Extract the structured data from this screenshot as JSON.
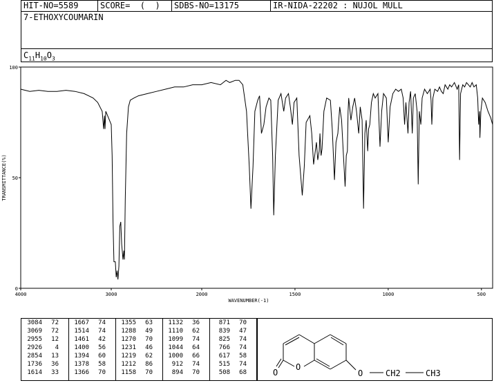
{
  "header": {
    "hit_no": "HIT-NO=5589",
    "score": "SCORE=  (  )",
    "sdbs_no": "SDBS-NO=13175",
    "ir_nida": "IR-NIDA-22202 : NUJOL MULL"
  },
  "compound": {
    "name": "7-ETHOXYCOUMARIN",
    "formula_parts": [
      "C",
      "11",
      "H",
      "10",
      "O",
      "3"
    ]
  },
  "chart_data": {
    "type": "line",
    "ylabel": "TRANSMITTANCE(%)",
    "xlabel": "WAVENUMBER(-1)",
    "x_ticks": [
      "4000",
      "3000",
      "2000",
      "1500",
      "1000",
      "500"
    ],
    "y_ticks": [
      "100",
      "50",
      "0"
    ],
    "ylim": [
      0,
      100
    ],
    "series": [
      {
        "points": [
          [
            4000,
            90
          ],
          [
            3900,
            89
          ],
          [
            3800,
            89.5
          ],
          [
            3700,
            89
          ],
          [
            3600,
            89
          ],
          [
            3500,
            89.5
          ],
          [
            3400,
            89
          ],
          [
            3300,
            88
          ],
          [
            3200,
            86
          ],
          [
            3150,
            84
          ],
          [
            3100,
            80
          ],
          [
            3084,
            72
          ],
          [
            3075,
            78
          ],
          [
            3069,
            72
          ],
          [
            3060,
            80
          ],
          [
            3040,
            78
          ],
          [
            3020,
            76
          ],
          [
            3000,
            74
          ],
          [
            2990,
            60
          ],
          [
            2980,
            30
          ],
          [
            2970,
            12
          ],
          [
            2955,
            12
          ],
          [
            2945,
            5
          ],
          [
            2935,
            8
          ],
          [
            2926,
            4
          ],
          [
            2915,
            10
          ],
          [
            2905,
            28
          ],
          [
            2895,
            30
          ],
          [
            2885,
            20
          ],
          [
            2870,
            13
          ],
          [
            2860,
            17
          ],
          [
            2854,
            13
          ],
          [
            2845,
            40
          ],
          [
            2830,
            70
          ],
          [
            2810,
            82
          ],
          [
            2790,
            85
          ],
          [
            2750,
            86
          ],
          [
            2700,
            87
          ],
          [
            2600,
            88
          ],
          [
            2500,
            89
          ],
          [
            2400,
            90
          ],
          [
            2300,
            91
          ],
          [
            2200,
            91
          ],
          [
            2100,
            92
          ],
          [
            2000,
            92
          ],
          [
            1950,
            93
          ],
          [
            1900,
            92
          ],
          [
            1870,
            94
          ],
          [
            1850,
            93
          ],
          [
            1820,
            94
          ],
          [
            1800,
            94
          ],
          [
            1780,
            92
          ],
          [
            1760,
            80
          ],
          [
            1745,
            55
          ],
          [
            1736,
            36
          ],
          [
            1725,
            55
          ],
          [
            1715,
            80
          ],
          [
            1700,
            85
          ],
          [
            1690,
            87
          ],
          [
            1680,
            70
          ],
          [
            1667,
            74
          ],
          [
            1655,
            82
          ],
          [
            1640,
            86
          ],
          [
            1630,
            85
          ],
          [
            1620,
            60
          ],
          [
            1614,
            33
          ],
          [
            1605,
            60
          ],
          [
            1590,
            85
          ],
          [
            1575,
            88
          ],
          [
            1560,
            80
          ],
          [
            1550,
            86
          ],
          [
            1535,
            88
          ],
          [
            1525,
            82
          ],
          [
            1514,
            74
          ],
          [
            1505,
            84
          ],
          [
            1490,
            86
          ],
          [
            1478,
            60
          ],
          [
            1461,
            42
          ],
          [
            1450,
            55
          ],
          [
            1440,
            75
          ],
          [
            1420,
            78
          ],
          [
            1410,
            70
          ],
          [
            1400,
            56
          ],
          [
            1394,
            60
          ],
          [
            1385,
            66
          ],
          [
            1378,
            58
          ],
          [
            1370,
            62
          ],
          [
            1366,
            70
          ],
          [
            1360,
            60
          ],
          [
            1355,
            63
          ],
          [
            1345,
            80
          ],
          [
            1330,
            86
          ],
          [
            1310,
            85
          ],
          [
            1300,
            72
          ],
          [
            1288,
            49
          ],
          [
            1280,
            66
          ],
          [
            1270,
            70
          ],
          [
            1260,
            82
          ],
          [
            1250,
            76
          ],
          [
            1240,
            60
          ],
          [
            1231,
            46
          ],
          [
            1225,
            60
          ],
          [
            1219,
            62
          ],
          [
            1215,
            80
          ],
          [
            1212,
            86
          ],
          [
            1200,
            76
          ],
          [
            1190,
            82
          ],
          [
            1180,
            86
          ],
          [
            1170,
            80
          ],
          [
            1158,
            70
          ],
          [
            1150,
            82
          ],
          [
            1140,
            76
          ],
          [
            1132,
            36
          ],
          [
            1125,
            70
          ],
          [
            1118,
            76
          ],
          [
            1110,
            62
          ],
          [
            1105,
            72
          ],
          [
            1099,
            74
          ],
          [
            1090,
            84
          ],
          [
            1080,
            88
          ],
          [
            1070,
            86
          ],
          [
            1055,
            88
          ],
          [
            1044,
            64
          ],
          [
            1035,
            80
          ],
          [
            1025,
            88
          ],
          [
            1010,
            86
          ],
          [
            1000,
            66
          ],
          [
            990,
            82
          ],
          [
            975,
            88
          ],
          [
            960,
            90
          ],
          [
            945,
            89
          ],
          [
            930,
            90
          ],
          [
            920,
            86
          ],
          [
            912,
            74
          ],
          [
            905,
            84
          ],
          [
            894,
            70
          ],
          [
            888,
            84
          ],
          [
            880,
            89
          ],
          [
            871,
            70
          ],
          [
            865,
            86
          ],
          [
            855,
            88
          ],
          [
            845,
            80
          ],
          [
            839,
            47
          ],
          [
            833,
            80
          ],
          [
            825,
            74
          ],
          [
            818,
            86
          ],
          [
            805,
            90
          ],
          [
            790,
            88
          ],
          [
            775,
            90
          ],
          [
            770,
            85
          ],
          [
            766,
            74
          ],
          [
            760,
            86
          ],
          [
            750,
            90
          ],
          [
            735,
            89
          ],
          [
            725,
            91
          ],
          [
            715,
            89
          ],
          [
            705,
            88
          ],
          [
            695,
            92
          ],
          [
            680,
            90
          ],
          [
            670,
            92
          ],
          [
            660,
            91
          ],
          [
            645,
            93
          ],
          [
            630,
            90
          ],
          [
            622,
            92
          ],
          [
            617,
            58
          ],
          [
            612,
            88
          ],
          [
            600,
            92
          ],
          [
            590,
            91
          ],
          [
            580,
            93
          ],
          [
            570,
            92
          ],
          [
            560,
            91
          ],
          [
            550,
            93
          ],
          [
            540,
            91
          ],
          [
            528,
            92
          ],
          [
            520,
            86
          ],
          [
            515,
            74
          ],
          [
            510,
            80
          ],
          [
            508,
            68
          ],
          [
            503,
            80
          ],
          [
            495,
            86
          ],
          [
            480,
            84
          ],
          [
            465,
            80
          ],
          [
            450,
            77
          ],
          [
            440,
            74
          ]
        ]
      }
    ]
  },
  "peak_table": [
    [
      [
        "3084",
        "72"
      ],
      [
        "3069",
        "72"
      ],
      [
        "2955",
        "12"
      ],
      [
        "2926",
        "4"
      ],
      [
        "2854",
        "13"
      ],
      [
        "1736",
        "36"
      ],
      [
        "1614",
        "33"
      ]
    ],
    [
      [
        "1667",
        "74"
      ],
      [
        "1514",
        "74"
      ],
      [
        "1461",
        "42"
      ],
      [
        "1400",
        "56"
      ],
      [
        "1394",
        "60"
      ],
      [
        "1378",
        "58"
      ],
      [
        "1366",
        "70"
      ]
    ],
    [
      [
        "1355",
        "63"
      ],
      [
        "1288",
        "49"
      ],
      [
        "1270",
        "70"
      ],
      [
        "1231",
        "46"
      ],
      [
        "1219",
        "62"
      ],
      [
        "1212",
        "86"
      ],
      [
        "1158",
        "70"
      ]
    ],
    [
      [
        "1132",
        "36"
      ],
      [
        "1110",
        "62"
      ],
      [
        "1099",
        "74"
      ],
      [
        "1044",
        "64"
      ],
      [
        "1000",
        "66"
      ],
      [
        "912",
        "74"
      ],
      [
        "894",
        "70"
      ]
    ],
    [
      [
        "871",
        "70"
      ],
      [
        "839",
        "47"
      ],
      [
        "825",
        "74"
      ],
      [
        "766",
        "74"
      ],
      [
        "617",
        "58"
      ],
      [
        "515",
        "74"
      ],
      [
        "508",
        "68"
      ]
    ]
  ],
  "structure": {
    "carbonyl_o": "O",
    "ring_o": "O",
    "ether_o": "O",
    "ch2": "CH2",
    "ch3": "CH3"
  }
}
